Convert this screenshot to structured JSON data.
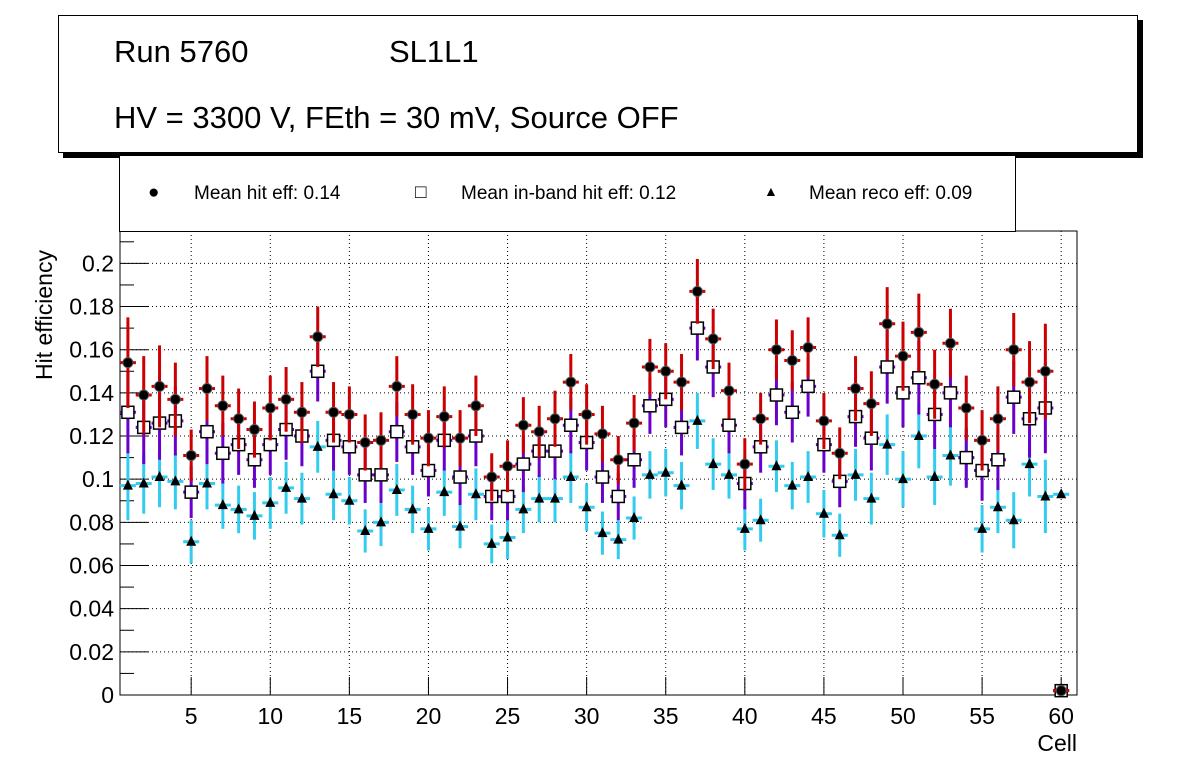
{
  "title": {
    "run": "Run 5760",
    "layer": "SL1L1",
    "conditions": "HV = 3300 V, FEth = 30 mV, Source OFF"
  },
  "legend": [
    {
      "marker": "filled-circle",
      "label": "Mean hit  eff: 0.14"
    },
    {
      "marker": "open-square",
      "label": "Mean in-band hit eff: 0.12"
    },
    {
      "marker": "filled-triangle",
      "label": "Mean reco eff: 0.09"
    }
  ],
  "chart_data": {
    "type": "scatter",
    "title": "Run 5760 SL1L1 — HV = 3300 V, FEth = 30 mV, Source OFF",
    "xlabel": "Cell",
    "ylabel": "Hit efficiency",
    "xlim": [
      0.5,
      61
    ],
    "ylim": [
      0,
      0.215
    ],
    "grid": true,
    "legend_position": "top",
    "xticks": [
      "5",
      "10",
      "15",
      "20",
      "25",
      "30",
      "35",
      "40",
      "45",
      "50",
      "55",
      "60"
    ],
    "yticks": [
      "0",
      "0.02",
      "0.04",
      "0.06",
      "0.08",
      "0.1",
      "0.12",
      "0.14",
      "0.16",
      "0.18",
      "0.2"
    ],
    "x": [
      1,
      2,
      3,
      4,
      5,
      6,
      7,
      8,
      9,
      10,
      11,
      12,
      13,
      14,
      15,
      16,
      17,
      18,
      19,
      20,
      21,
      22,
      23,
      24,
      25,
      26,
      27,
      28,
      29,
      30,
      31,
      32,
      33,
      34,
      35,
      36,
      37,
      38,
      39,
      40,
      41,
      42,
      43,
      44,
      45,
      46,
      47,
      48,
      49,
      50,
      51,
      52,
      53,
      54,
      55,
      56,
      57,
      58,
      59,
      60
    ],
    "series": [
      {
        "name": "Mean hit  eff: 0.14",
        "color": "#cc0000",
        "marker": "circle",
        "values": [
          0.154,
          0.139,
          0.143,
          0.137,
          0.111,
          0.142,
          0.134,
          0.128,
          0.123,
          0.133,
          0.137,
          0.131,
          0.166,
          0.131,
          0.13,
          0.117,
          0.118,
          0.143,
          0.13,
          0.119,
          0.129,
          0.119,
          0.134,
          0.101,
          0.106,
          0.125,
          0.122,
          0.128,
          0.145,
          0.13,
          0.121,
          0.109,
          0.126,
          0.152,
          0.15,
          0.145,
          0.187,
          0.165,
          0.141,
          0.107,
          0.128,
          0.16,
          0.155,
          0.161,
          0.127,
          0.112,
          0.142,
          0.135,
          0.172,
          0.157,
          0.168,
          0.144,
          0.163,
          0.133,
          0.118,
          0.128,
          0.16,
          0.145,
          0.15,
          0.002
        ],
        "errors": [
          0.021,
          0.018,
          0.019,
          0.017,
          0.012,
          0.015,
          0.014,
          0.014,
          0.013,
          0.015,
          0.015,
          0.014,
          0.014,
          0.014,
          0.013,
          0.013,
          0.013,
          0.014,
          0.014,
          0.013,
          0.014,
          0.013,
          0.014,
          0.011,
          0.012,
          0.013,
          0.012,
          0.013,
          0.013,
          0.014,
          0.013,
          0.011,
          0.013,
          0.013,
          0.013,
          0.013,
          0.015,
          0.014,
          0.013,
          0.012,
          0.012,
          0.014,
          0.014,
          0.014,
          0.013,
          0.012,
          0.015,
          0.015,
          0.017,
          0.016,
          0.018,
          0.016,
          0.016,
          0.015,
          0.014,
          0.015,
          0.017,
          0.019,
          0.022,
          0.001
        ]
      },
      {
        "name": "Mean in-band hit eff: 0.12",
        "color": "#6a00cc",
        "marker": "open-square",
        "values": [
          0.131,
          0.124,
          0.126,
          0.127,
          0.094,
          0.122,
          0.112,
          0.116,
          0.109,
          0.116,
          0.123,
          0.12,
          0.15,
          0.118,
          0.115,
          0.102,
          0.102,
          0.122,
          0.115,
          0.104,
          0.118,
          0.101,
          0.12,
          0.092,
          0.092,
          0.107,
          0.113,
          0.113,
          0.125,
          0.117,
          0.101,
          0.092,
          0.109,
          0.134,
          0.137,
          0.124,
          0.17,
          0.152,
          0.125,
          0.098,
          0.115,
          0.139,
          0.131,
          0.143,
          0.116,
          0.099,
          0.129,
          0.119,
          0.152,
          0.14,
          0.147,
          0.13,
          0.14,
          0.11,
          0.104,
          0.109,
          0.138,
          0.128,
          0.133,
          0.002
        ],
        "errors": [
          0.019,
          0.017,
          0.017,
          0.016,
          0.012,
          0.015,
          0.014,
          0.014,
          0.013,
          0.014,
          0.014,
          0.014,
          0.014,
          0.014,
          0.013,
          0.013,
          0.013,
          0.014,
          0.013,
          0.012,
          0.014,
          0.013,
          0.014,
          0.011,
          0.011,
          0.013,
          0.012,
          0.013,
          0.013,
          0.013,
          0.012,
          0.011,
          0.013,
          0.013,
          0.013,
          0.013,
          0.015,
          0.014,
          0.013,
          0.012,
          0.012,
          0.014,
          0.014,
          0.014,
          0.013,
          0.012,
          0.014,
          0.015,
          0.017,
          0.016,
          0.017,
          0.016,
          0.016,
          0.014,
          0.014,
          0.014,
          0.017,
          0.018,
          0.021,
          0.001
        ]
      },
      {
        "name": "Mean reco eff: 0.09",
        "color": "#33ccee",
        "marker": "triangle",
        "values": [
          0.097,
          0.098,
          0.101,
          0.099,
          0.071,
          0.098,
          0.088,
          0.086,
          0.083,
          0.089,
          0.096,
          0.091,
          0.115,
          0.093,
          0.09,
          0.076,
          0.08,
          0.095,
          0.086,
          0.077,
          0.094,
          0.078,
          0.093,
          0.07,
          0.073,
          0.086,
          0.091,
          0.091,
          0.101,
          0.087,
          0.075,
          0.072,
          0.082,
          0.102,
          0.103,
          0.097,
          0.127,
          0.107,
          0.102,
          0.077,
          0.081,
          0.106,
          0.097,
          0.101,
          0.084,
          0.074,
          0.102,
          0.091,
          0.116,
          0.1,
          0.12,
          0.101,
          0.111,
          0.11,
          0.077,
          0.087,
          0.081,
          0.107,
          0.092,
          0.093
        ],
        "errors": [
          0.016,
          0.014,
          0.014,
          0.013,
          0.01,
          0.012,
          0.011,
          0.011,
          0.011,
          0.012,
          0.012,
          0.012,
          0.012,
          0.012,
          0.011,
          0.01,
          0.011,
          0.012,
          0.011,
          0.01,
          0.011,
          0.01,
          0.012,
          0.009,
          0.01,
          0.011,
          0.011,
          0.011,
          0.012,
          0.011,
          0.01,
          0.009,
          0.01,
          0.011,
          0.011,
          0.011,
          0.013,
          0.012,
          0.011,
          0.01,
          0.01,
          0.012,
          0.011,
          0.012,
          0.011,
          0.01,
          0.012,
          0.012,
          0.014,
          0.013,
          0.015,
          0.013,
          0.014,
          0.013,
          0.011,
          0.012,
          0.013,
          0.015,
          0.017,
          0.001
        ]
      }
    ]
  }
}
